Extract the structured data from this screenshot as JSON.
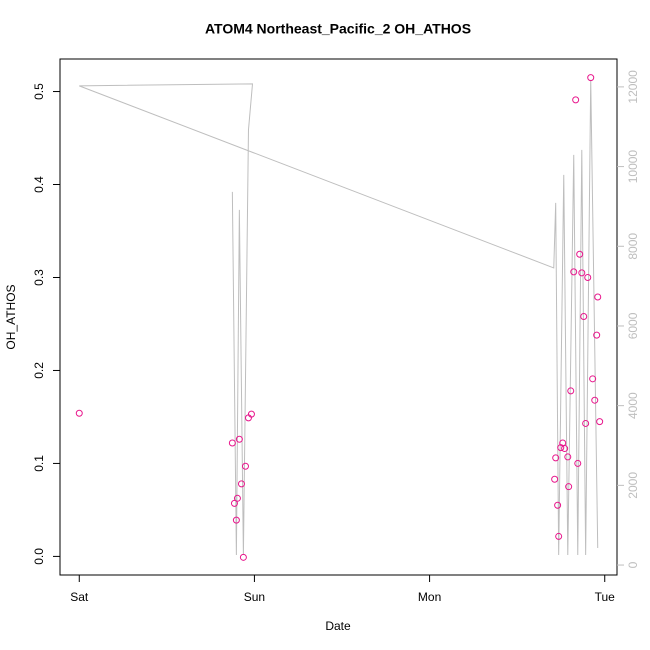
{
  "chart_data": {
    "type": "scatter",
    "title": "ATOM4 Northeast_Pacific_2 OH_ATHOS",
    "x_label": "Date",
    "y_label": "OH_ATHOS",
    "xlim": [
      -0.11,
      3.07
    ],
    "xticks": [
      {
        "value": 0,
        "label": "Sat"
      },
      {
        "value": 1,
        "label": "Sun"
      },
      {
        "value": 2,
        "label": "Mon"
      },
      {
        "value": 3,
        "label": "Tue"
      }
    ],
    "ylim": [
      -0.02,
      0.535
    ],
    "yticks": [
      {
        "value": 0,
        "label": "0.0"
      },
      {
        "value": 0.1,
        "label": "0.1"
      },
      {
        "value": 0.2,
        "label": "0.2"
      },
      {
        "value": 0.3,
        "label": "0.3"
      },
      {
        "value": 0.4,
        "label": "0.4"
      },
      {
        "value": 0.5,
        "label": "0.5"
      }
    ],
    "y2lim": [
      -250,
      12700
    ],
    "y2ticks": [
      0,
      2000,
      4000,
      6000,
      8000,
      10000,
      12000
    ],
    "y2_color": "#bebebe",
    "series": [
      {
        "type": "scatter",
        "color": "#e8168c",
        "x": [
          0,
          0.874,
          0.886,
          0.897,
          0.903,
          0.914,
          0.926,
          0.937,
          0.949,
          0.966,
          0.983,
          2.714,
          2.72,
          2.731,
          2.737,
          2.749,
          2.76,
          2.771,
          2.789,
          2.794,
          2.806,
          2.823,
          2.834,
          2.846,
          2.857,
          2.869,
          2.88,
          2.891,
          2.903,
          2.92,
          2.931,
          2.943,
          2.954,
          2.96,
          2.971
        ],
        "values": [
          0.154,
          0.122,
          0.057,
          0.039,
          0.0625,
          0.126,
          0.078,
          -0.001,
          0.097,
          0.149,
          0.153,
          0.083,
          0.106,
          0.055,
          0.0215,
          0.117,
          0.122,
          0.116,
          0.107,
          0.075,
          0.178,
          0.306,
          0.491,
          0.1,
          0.325,
          0.305,
          0.258,
          0.143,
          0.3,
          0.515,
          0.191,
          0.168,
          0.238,
          0.279,
          0.145
        ]
      },
      {
        "type": "line",
        "color": "#bebebe",
        "axis": "y2",
        "x": [
          0.874,
          0.897,
          0.914,
          0.937,
          0.966,
          0.989,
          0,
          2.709,
          2.72,
          2.737,
          2.766,
          2.789,
          2.823,
          2.846,
          2.869,
          2.891,
          2.92,
          2.96
        ],
        "values": [
          9365,
          251,
          8913,
          251,
          10921,
          12076,
          12026,
          7457,
          9089,
          251,
          9792,
          251,
          10294,
          251,
          10419,
          251,
          12177,
          427
        ]
      }
    ]
  }
}
